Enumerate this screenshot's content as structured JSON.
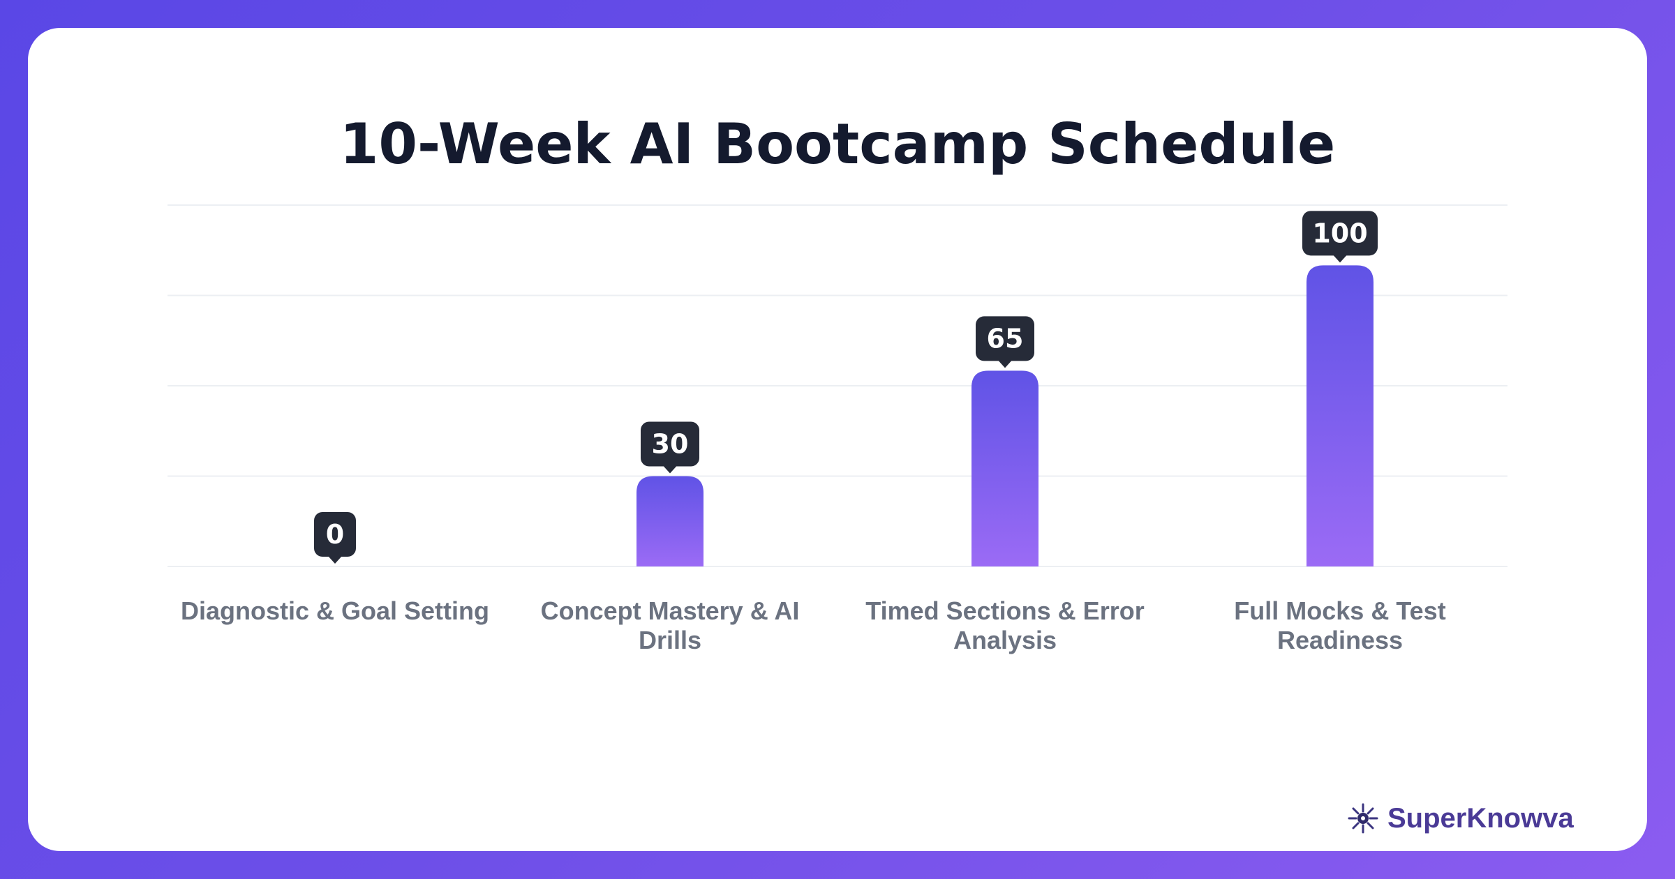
{
  "title": "10-Week AI Bootcamp Schedule",
  "brand": {
    "name": "SuperKnowva",
    "logo_icon": "starburst-logo-icon"
  },
  "colors": {
    "bar_top": "#6053e6",
    "bar_bottom": "#9b6bf5",
    "label_bg": "#262b38",
    "label_text": "#ffffff",
    "category_text": "#6b7280",
    "grid": "#eceff3"
  },
  "chart_data": {
    "type": "bar",
    "title": "10-Week AI Bootcamp Schedule",
    "categories": [
      [
        "Diagnostic & Goal Setting"
      ],
      [
        "Concept Mastery & AI",
        "Drills"
      ],
      [
        "Timed Sections & Error",
        "Analysis"
      ],
      [
        "Full Mocks & Test",
        "Readiness"
      ]
    ],
    "values": [
      0,
      30,
      65,
      100
    ],
    "data_labels": [
      "0",
      "30",
      "65",
      "100"
    ],
    "ylim": [
      0,
      120
    ],
    "grid": true,
    "xlabel": "",
    "ylabel": ""
  }
}
